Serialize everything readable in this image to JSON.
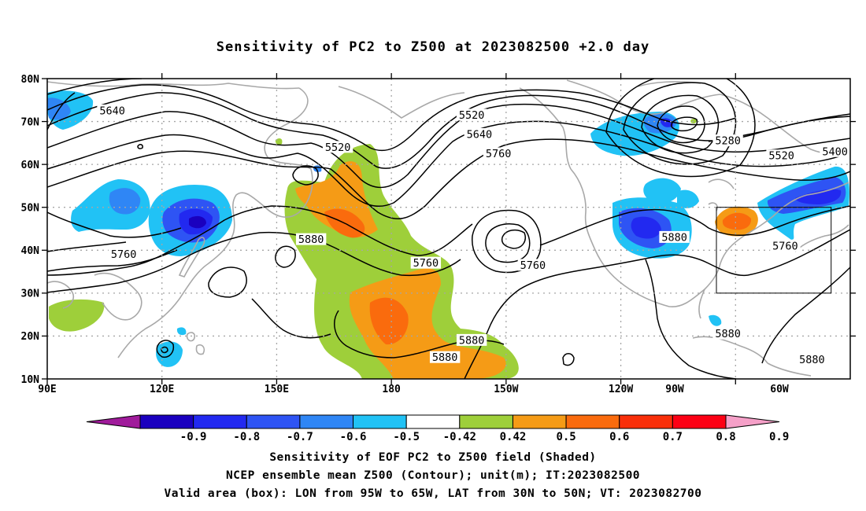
{
  "title": "Sensitivity of PC2 to Z500 at 2023082500 +2.0 day",
  "map": {
    "projection": "equirectangular",
    "lon_range": [
      90,
      300
    ],
    "lat_range": [
      10,
      80
    ],
    "lat_labels": [
      "80N",
      "70N",
      "60N",
      "50N",
      "40N",
      "30N",
      "20N",
      "10N"
    ],
    "lon_labels": [
      "90E",
      "120E",
      "150E",
      "180",
      "150W",
      "120W",
      "90W",
      "60W"
    ],
    "contour_labels": [
      {
        "text": "5640",
        "lon": 107,
        "lat": 72.5
      },
      {
        "text": "5520",
        "lon": 166,
        "lat": 64
      },
      {
        "text": "5520",
        "lon": 201,
        "lat": 71.5
      },
      {
        "text": "5640",
        "lon": 203,
        "lat": 67
      },
      {
        "text": "5760",
        "lon": 208,
        "lat": 62.5
      },
      {
        "text": "5280",
        "lon": 268,
        "lat": 65.5
      },
      {
        "text": "5520",
        "lon": 282,
        "lat": 62
      },
      {
        "text": "5400",
        "lon": 296,
        "lat": 63
      },
      {
        "text": "5880",
        "lon": 159,
        "lat": 42.5
      },
      {
        "text": "5760",
        "lon": 189,
        "lat": 37
      },
      {
        "text": "5760",
        "lon": 217,
        "lat": 36.5
      },
      {
        "text": "5880",
        "lon": 254,
        "lat": 43
      },
      {
        "text": "5760",
        "lon": 283,
        "lat": 41
      },
      {
        "text": "5760",
        "lon": 110,
        "lat": 39
      },
      {
        "text": "5880",
        "lon": 194,
        "lat": 15
      },
      {
        "text": "5880",
        "lon": 201,
        "lat": 19
      },
      {
        "text": "5880",
        "lon": 268,
        "lat": 20.5
      },
      {
        "text": "5880",
        "lon": 290,
        "lat": 14.5
      }
    ],
    "valid_box": {
      "lon_min": 265,
      "lon_max": 295,
      "lat_min": 30,
      "lat_max": 50
    }
  },
  "colorbar": {
    "labels": [
      "-0.9",
      "-0.8",
      "-0.7",
      "-0.6",
      "-0.5",
      "-0.42",
      "0.42",
      "0.5",
      "0.6",
      "0.7",
      "0.8",
      "0.9"
    ],
    "colors": [
      "#a01b9b",
      "#1a00bf",
      "#2229f0",
      "#2e54f4",
      "#2f86f5",
      "#21c2f5",
      "#ffffff",
      "#9ecf3a",
      "#f59b16",
      "#fa6b0d",
      "#f92f0a",
      "#fc0014",
      "#f5a0c8"
    ]
  },
  "captions": [
    "Sensitivity of EOF PC2 to Z500 field (Shaded)",
    "NCEP ensemble mean Z500 (Contour); unit(m); IT:2023082500",
    "Valid area (box): LON from 95W to 65W, LAT from 30N to 50N; VT: 2023082700"
  ]
}
